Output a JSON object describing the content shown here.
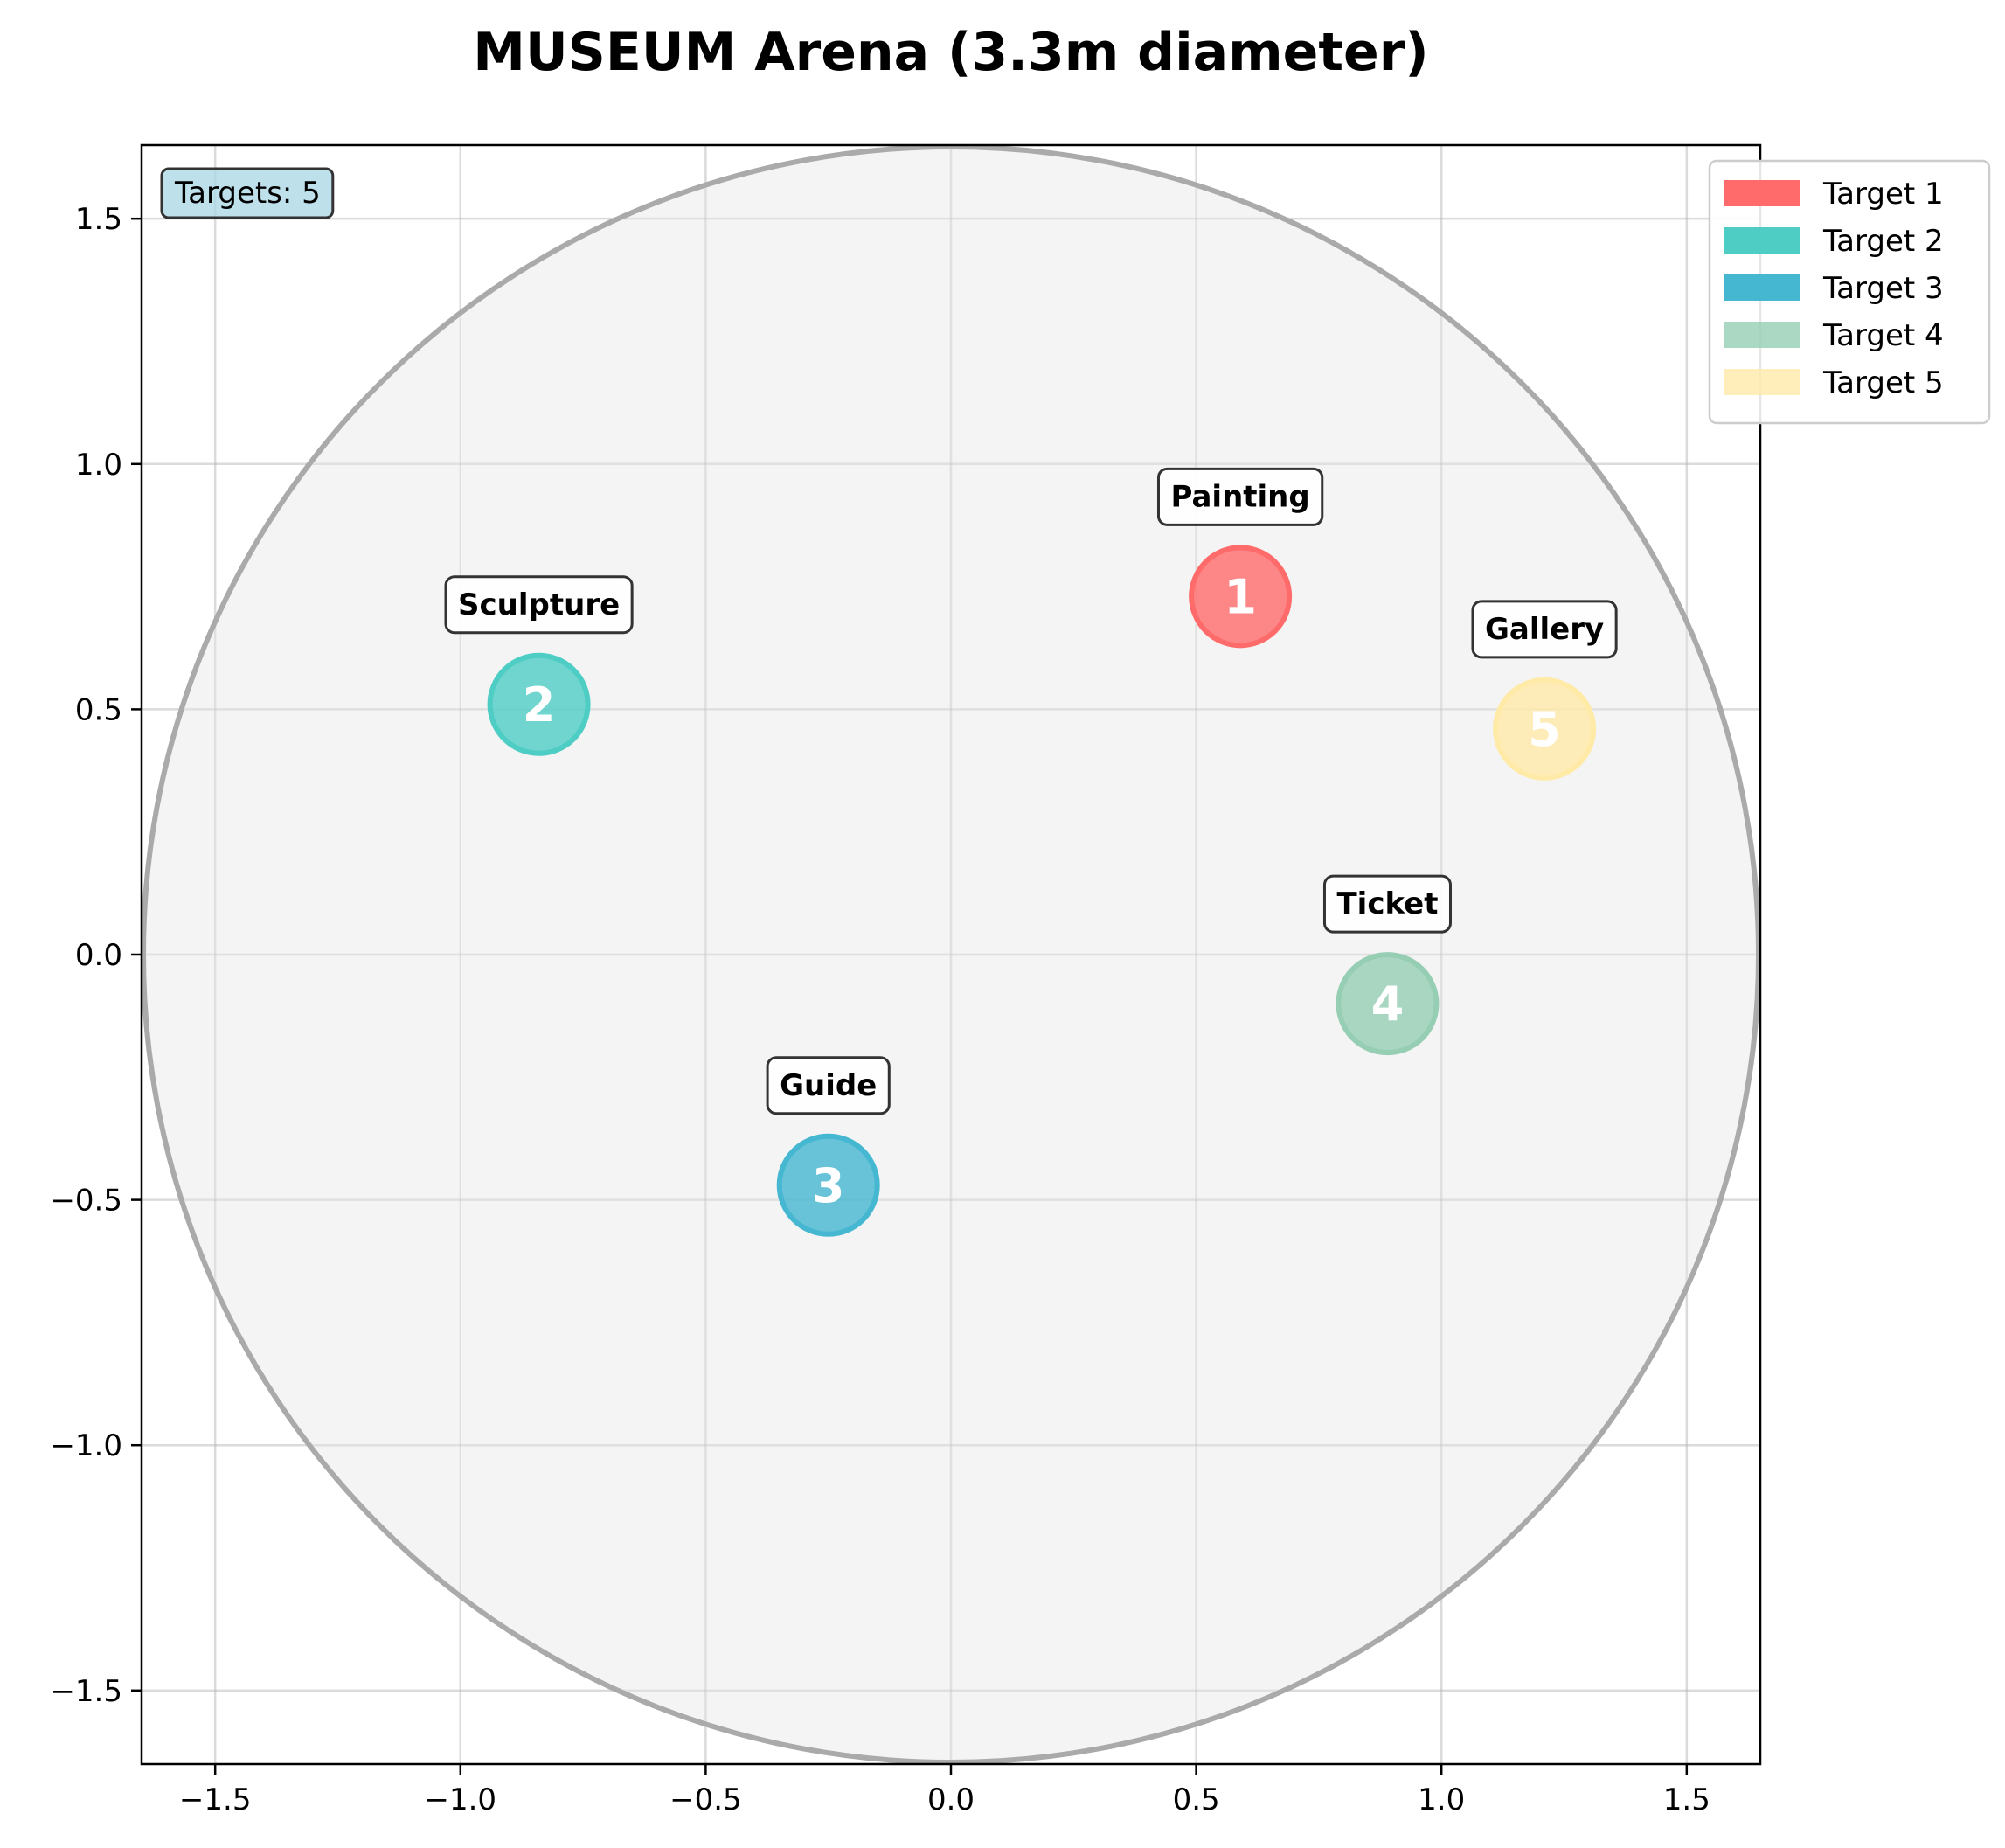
{
  "chart_data": {
    "type": "scatter",
    "title": "MUSEUM Arena (3.3m diameter)",
    "xlabel": "",
    "ylabel": "",
    "xlim": [
      -1.65,
      1.65
    ],
    "ylim": [
      -1.65,
      1.65
    ],
    "x_ticks": [
      -1.5,
      -1.0,
      -0.5,
      0.0,
      0.5,
      1.0,
      1.5
    ],
    "y_ticks": [
      -1.5,
      -1.0,
      -0.5,
      0.0,
      0.5,
      1.0,
      1.5
    ],
    "x_tick_labels": [
      "−1.5",
      "−1.0",
      "−0.5",
      "0.0",
      "0.5",
      "1.0",
      "1.5"
    ],
    "y_tick_labels": [
      "−1.5",
      "−1.0",
      "−0.5",
      "0.0",
      "0.5",
      "1.0",
      "1.5"
    ],
    "grid": true,
    "arena": {
      "center": [
        0,
        0
      ],
      "radius": 1.65,
      "fill": "#f0f0f0",
      "edge": "#aaaaaa"
    },
    "target_count_label": "Targets: 5",
    "legend_position": "upper-right-outside",
    "series": [
      {
        "name": "Target 1",
        "number": "1",
        "label": "Painting",
        "x": 0.59,
        "y": 0.73,
        "color": "#ff6b6b"
      },
      {
        "name": "Target 2",
        "number": "2",
        "label": "Sculpture",
        "x": -0.84,
        "y": 0.51,
        "color": "#4ecdc4"
      },
      {
        "name": "Target 3",
        "number": "3",
        "label": "Guide",
        "x": -0.25,
        "y": -0.47,
        "color": "#45b7d1"
      },
      {
        "name": "Target 4",
        "number": "4",
        "label": "Ticket",
        "x": 0.89,
        "y": -0.1,
        "color": "#96ceb4"
      },
      {
        "name": "Target 5",
        "number": "5",
        "label": "Gallery",
        "x": 1.21,
        "y": 0.46,
        "color": "#ffeaa7"
      }
    ]
  }
}
